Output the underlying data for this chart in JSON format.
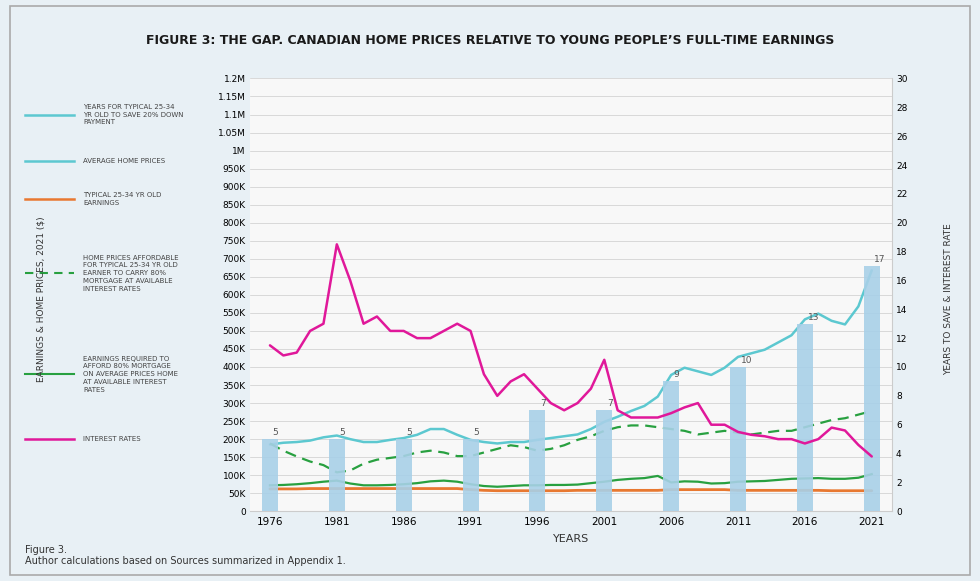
{
  "title": "FIGURE 3: THE GAP. CANADIAN HOME PRICES RELATIVE TO YOUNG PEOPLE’S FULL-TIME EARNINGS",
  "xlabel": "YEARS",
  "ylabel_left": "EARNINGS & HOME PRICES, 2021 ($)",
  "ylabel_right": "YEARS TO SAVE & INTEREST RATE",
  "footnote": "Figure 3.\nAuthor calculations based on Sources summarized in Appendix 1.",
  "years": [
    1976,
    1977,
    1978,
    1979,
    1980,
    1981,
    1982,
    1983,
    1984,
    1985,
    1986,
    1987,
    1988,
    1989,
    1990,
    1991,
    1992,
    1993,
    1994,
    1995,
    1996,
    1997,
    1998,
    1999,
    2000,
    2001,
    2002,
    2003,
    2004,
    2005,
    2006,
    2007,
    2008,
    2009,
    2010,
    2011,
    2012,
    2013,
    2014,
    2015,
    2016,
    2017,
    2018,
    2019,
    2020,
    2021
  ],
  "avg_home_prices": [
    185000,
    190000,
    192000,
    196000,
    205000,
    210000,
    200000,
    192000,
    192000,
    198000,
    203000,
    212000,
    228000,
    228000,
    212000,
    198000,
    192000,
    188000,
    192000,
    192000,
    198000,
    203000,
    208000,
    213000,
    228000,
    248000,
    262000,
    278000,
    292000,
    318000,
    378000,
    398000,
    388000,
    378000,
    398000,
    428000,
    438000,
    448000,
    468000,
    488000,
    532000,
    548000,
    528000,
    518000,
    568000,
    668000
  ],
  "earnings": [
    62000,
    62000,
    62000,
    63000,
    63000,
    63000,
    63000,
    63000,
    63000,
    63000,
    63000,
    63000,
    63000,
    63000,
    63000,
    60000,
    58000,
    57000,
    57000,
    57000,
    57000,
    57000,
    57000,
    58000,
    58000,
    58000,
    58000,
    58000,
    58000,
    58000,
    60000,
    60000,
    60000,
    60000,
    60000,
    58000,
    58000,
    58000,
    58000,
    58000,
    58000,
    58000,
    57000,
    57000,
    57000,
    57000
  ],
  "affordable_home_prices": [
    188000,
    168000,
    152000,
    138000,
    128000,
    108000,
    113000,
    132000,
    143000,
    148000,
    153000,
    163000,
    168000,
    163000,
    153000,
    153000,
    163000,
    173000,
    183000,
    178000,
    168000,
    173000,
    183000,
    198000,
    208000,
    223000,
    233000,
    238000,
    238000,
    233000,
    228000,
    223000,
    213000,
    218000,
    223000,
    218000,
    213000,
    218000,
    223000,
    223000,
    233000,
    243000,
    253000,
    258000,
    268000,
    278000
  ],
  "earnings_req": [
    72000,
    73000,
    75000,
    78000,
    82000,
    85000,
    77000,
    72000,
    72000,
    73000,
    75000,
    78000,
    83000,
    85000,
    82000,
    75000,
    70000,
    68000,
    70000,
    72000,
    72000,
    73000,
    73000,
    74000,
    78000,
    82000,
    87000,
    90000,
    92000,
    98000,
    80000,
    83000,
    82000,
    77000,
    78000,
    82000,
    83000,
    84000,
    87000,
    90000,
    91000,
    92000,
    90000,
    90000,
    93000,
    103000
  ],
  "interest_rates": [
    11.5,
    10.8,
    11.0,
    12.5,
    13.0,
    18.5,
    16.0,
    13.0,
    13.5,
    12.5,
    12.5,
    12.0,
    12.0,
    12.5,
    13.0,
    12.5,
    9.5,
    8.0,
    9.0,
    9.5,
    8.5,
    7.5,
    7.0,
    7.5,
    8.5,
    10.5,
    7.0,
    6.5,
    6.5,
    6.5,
    6.8,
    7.2,
    7.5,
    6.0,
    6.0,
    5.5,
    5.3,
    5.2,
    5.0,
    5.0,
    4.7,
    5.0,
    5.8,
    5.6,
    4.6,
    3.8
  ],
  "bar_years": [
    1976,
    1981,
    1986,
    1991,
    1996,
    2001,
    2006,
    2011,
    2016,
    2021
  ],
  "bar_values": [
    5,
    5,
    5,
    5,
    7,
    7,
    9,
    10,
    13,
    17
  ],
  "bg_color": "#e8f0f5",
  "plot_bg": "#f8f8f8",
  "title_bg": "#c5d8e5",
  "outer_bg": "#e0ecf3",
  "color_avg_home": "#5cc8d0",
  "color_earnings": "#e87830",
  "color_affordable": "#28a040",
  "color_interest": "#e0189a",
  "color_bars": "#a8d0e8",
  "ylim_left": [
    0,
    1200000
  ],
  "ylim_right": [
    0,
    30
  ],
  "yticks_left": [
    0,
    50000,
    100000,
    150000,
    200000,
    250000,
    300000,
    350000,
    400000,
    450000,
    500000,
    550000,
    600000,
    650000,
    700000,
    750000,
    800000,
    850000,
    900000,
    950000,
    1000000,
    1050000,
    1100000,
    1150000,
    1200000
  ],
  "ytick_labels_left": [
    "0",
    "50K",
    "100K",
    "150K",
    "200K",
    "250K",
    "300K",
    "350K",
    "400K",
    "450K",
    "500K",
    "550K",
    "600K",
    "650K",
    "700K",
    "750K",
    "800K",
    "850K",
    "900K",
    "950K",
    "1M",
    "1.05M",
    "1.1M",
    "1.15M",
    "1.2M"
  ],
  "yticks_right": [
    0,
    2,
    4,
    6,
    8,
    10,
    12,
    14,
    16,
    18,
    20,
    22,
    24,
    26,
    28,
    30
  ],
  "legend_items": [
    {
      "label": "YEARS FOR TYPICAL 25-34\nYR OLD TO SAVE 20% DOWN\nPAYMENT",
      "color": "#5cc8d0",
      "linestyle": "solid",
      "linewidth": 1.8
    },
    {
      "label": "AVERAGE HOME PRICES",
      "color": "#5cc8d0",
      "linestyle": "solid",
      "linewidth": 1.8
    },
    {
      "label": "TYPICAL 25-34 YR OLD\nEARNINGS",
      "color": "#e87830",
      "linestyle": "solid",
      "linewidth": 1.8
    },
    {
      "label": "HOME PRICES AFFORDABLE\nFOR TYPICAL 25-34 YR OLD\nEARNER TO CARRY 80%\nMORTGAGE AT AVAILABLE\nINTEREST RATES",
      "color": "#28a040",
      "linestyle": "dashed",
      "linewidth": 1.5
    },
    {
      "label": "EARNINGS REQUIRED TO\nAFFORD 80% MORTGAGE\nON AVERAGE PRICES HOME\nAT AVAILABLE INTEREST\nRATES",
      "color": "#28a040",
      "linestyle": "solid",
      "linewidth": 1.5
    },
    {
      "label": "INTEREST RATES",
      "color": "#e0189a",
      "linestyle": "solid",
      "linewidth": 1.8
    }
  ]
}
